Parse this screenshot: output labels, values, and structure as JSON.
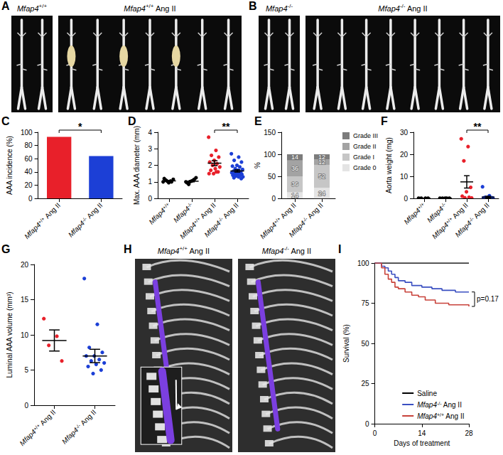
{
  "chart_data": [
    {
      "type": "image",
      "title": "A",
      "annotations": [
        "Mfap4+/+",
        "Mfap4+/+ Ang II"
      ]
    },
    {
      "type": "image",
      "title": "B",
      "annotations": [
        "Mfap4-/-",
        "Mfap4-/- Ang II"
      ]
    },
    {
      "type": "bar",
      "title": "C",
      "categories": [
        "Mfap4+/+ Ang II",
        "Mfap4-/- Ang II"
      ],
      "values": [
        93,
        64
      ],
      "colors": [
        "#e8202a",
        "#1c3fd6"
      ],
      "y_label": "AAA incidence (%)",
      "ylim": [
        0,
        100
      ],
      "yticks": [
        0,
        20,
        40,
        60,
        80,
        100
      ],
      "annotations": [
        {
          "text": "*",
          "between": [
            0,
            1
          ]
        }
      ]
    },
    {
      "type": "scatter",
      "title": "D",
      "categories": [
        "Mfap4+/+",
        "Mfap4-/-",
        "Mfap4+/+ Ang II",
        "Mfap4-/- Ang II"
      ],
      "values": [
        [
          1.0,
          1.05,
          1.1,
          1.15,
          0.95,
          1.2,
          1.0,
          1.05
        ],
        [
          1.0,
          1.1,
          0.85,
          1.25,
          1.05,
          0.95,
          1.15,
          1.0
        ],
        [
          3.7,
          2.9,
          2.6,
          2.5,
          2.3,
          2.2,
          2.1,
          2.0,
          1.9,
          1.8,
          1.7,
          1.6,
          1.5,
          1.5,
          1.6
        ],
        [
          2.7,
          2.5,
          2.3,
          2.2,
          2.0,
          1.95,
          1.9,
          1.8,
          1.75,
          1.7,
          1.65,
          1.6,
          1.6,
          1.55,
          1.5,
          1.5,
          1.45,
          1.45,
          1.4,
          1.4,
          1.35,
          1.3,
          1.3,
          1.25,
          1.2
        ]
      ],
      "colors": [
        "#000000",
        "#000000",
        "#e8202a",
        "#1c3fd6"
      ],
      "means": [
        1.06,
        1.04,
        2.13,
        1.66
      ],
      "sems": [
        0.03,
        0.04,
        0.15,
        0.07
      ],
      "y_label": "Max. AAA diameter (mm)",
      "ylim": [
        0,
        4
      ],
      "yticks": [
        0,
        1,
        2,
        3,
        4
      ],
      "annotations": [
        {
          "text": "**",
          "between": [
            2,
            3
          ]
        }
      ]
    },
    {
      "type": "bar",
      "title": "E",
      "stacked": true,
      "categories": [
        "Mfap4+/+ Ang II",
        "Mfap4-/- Ang II"
      ],
      "series": [
        {
          "name": "Grade 0",
          "color": "#e4e4e4",
          "values": [
            14,
            24
          ]
        },
        {
          "name": "Grade I",
          "color": "#c6c6c6",
          "values": [
            36,
            52
          ]
        },
        {
          "name": "Grade II",
          "color": "#a3a3a3",
          "values": [
            36,
            12
          ]
        },
        {
          "name": "Grade III",
          "color": "#7c7c7c",
          "values": [
            14,
            12
          ]
        }
      ],
      "y_label": "%",
      "ylim": [
        0,
        150
      ],
      "yticks": [
        0,
        50,
        100,
        150
      ],
      "data_labels": true,
      "legend": "upper right"
    },
    {
      "type": "scatter",
      "title": "F",
      "categories": [
        "Mfap4+/+",
        "Mfap4-/-",
        "Mfap4+/+ Ang II",
        "Mfap4-/- Ang II"
      ],
      "values": [
        [
          0.1,
          0.1,
          0.1,
          0.1
        ],
        [
          0.1,
          0.1,
          0.1,
          0.1,
          0.1
        ],
        [
          27,
          23.5,
          17,
          5,
          3,
          1,
          0.5,
          0.3,
          0.2
        ],
        [
          5.3,
          1.2,
          0.5,
          0.3,
          0.2,
          0.2,
          0.1,
          0.1,
          0.1,
          0.1,
          0.1,
          0.1,
          0.1
        ]
      ],
      "colors": [
        "#000000",
        "#000000",
        "#e8202a",
        "#1c3fd6"
      ],
      "means": [
        0.1,
        0.1,
        7.5,
        0.6
      ],
      "sems": [
        0,
        0,
        2.8,
        0.4
      ],
      "y_label": "Aorta weight (mg)",
      "ylim": [
        0,
        30
      ],
      "yticks": [
        0,
        10,
        20,
        30
      ],
      "annotations": [
        {
          "text": "**",
          "between": [
            2,
            3
          ]
        }
      ]
    },
    {
      "type": "scatter",
      "title": "G",
      "categories": [
        "Mfap4+/+ Ang II",
        "Mfap4-/- Ang II"
      ],
      "values": [
        [
          12.3,
          9.8,
          8.5,
          6.3
        ],
        [
          18,
          11.5,
          8.2,
          7.5,
          7.0,
          7.0,
          6.5,
          6.3,
          6.0,
          5.8,
          5.5,
          5.0,
          4.5
        ]
      ],
      "colors": [
        "#e8202a",
        "#1c3fd6"
      ],
      "means": [
        9.2,
        7.0
      ],
      "sems": [
        1.5,
        0.95
      ],
      "y_label": "Luminal AAA volume (mm³)",
      "ylim": [
        0,
        20
      ],
      "yticks": [
        0,
        5,
        10,
        15,
        20
      ]
    },
    {
      "type": "image",
      "title": "H",
      "annotations": [
        "Mfap4+/+ Ang II",
        "Mfap4-/- Ang II"
      ]
    },
    {
      "type": "line",
      "title": "I",
      "line_style": "step",
      "series": [
        {
          "name": "Saline",
          "color": "#000000",
          "x": [
            0,
            28
          ],
          "values": [
            100,
            100
          ]
        },
        {
          "name": "Mfap4-/- Ang II",
          "color": "#3a4fc1",
          "x": [
            0,
            2,
            3,
            4,
            5,
            6,
            7,
            9,
            11,
            14,
            17,
            20,
            24,
            28
          ],
          "values": [
            100,
            98,
            97,
            95,
            93,
            91,
            89,
            88,
            86,
            85,
            84,
            83,
            82,
            82
          ]
        },
        {
          "name": "Mfap4+/+ Ang II",
          "color": "#c8423a",
          "x": [
            0,
            2,
            3,
            4,
            5,
            6,
            7,
            9,
            11,
            13,
            15,
            18,
            22,
            28
          ],
          "values": [
            100,
            97,
            93,
            90,
            88,
            85,
            84,
            82,
            80,
            79,
            77,
            75,
            74,
            73
          ]
        }
      ],
      "x_label": "Days of treatment",
      "y_label": "Survival (%)",
      "xlim": [
        0,
        28
      ],
      "xticks": [
        0,
        14,
        28
      ],
      "ylim": [
        0,
        100
      ],
      "yticks": [
        0,
        25,
        50,
        75,
        100
      ],
      "legend": "lower right",
      "annotations": [
        {
          "text": "p=0.17",
          "between": [
            "Mfap4-/- Ang II",
            "Mfap4+/+ Ang II"
          ]
        }
      ]
    }
  ]
}
